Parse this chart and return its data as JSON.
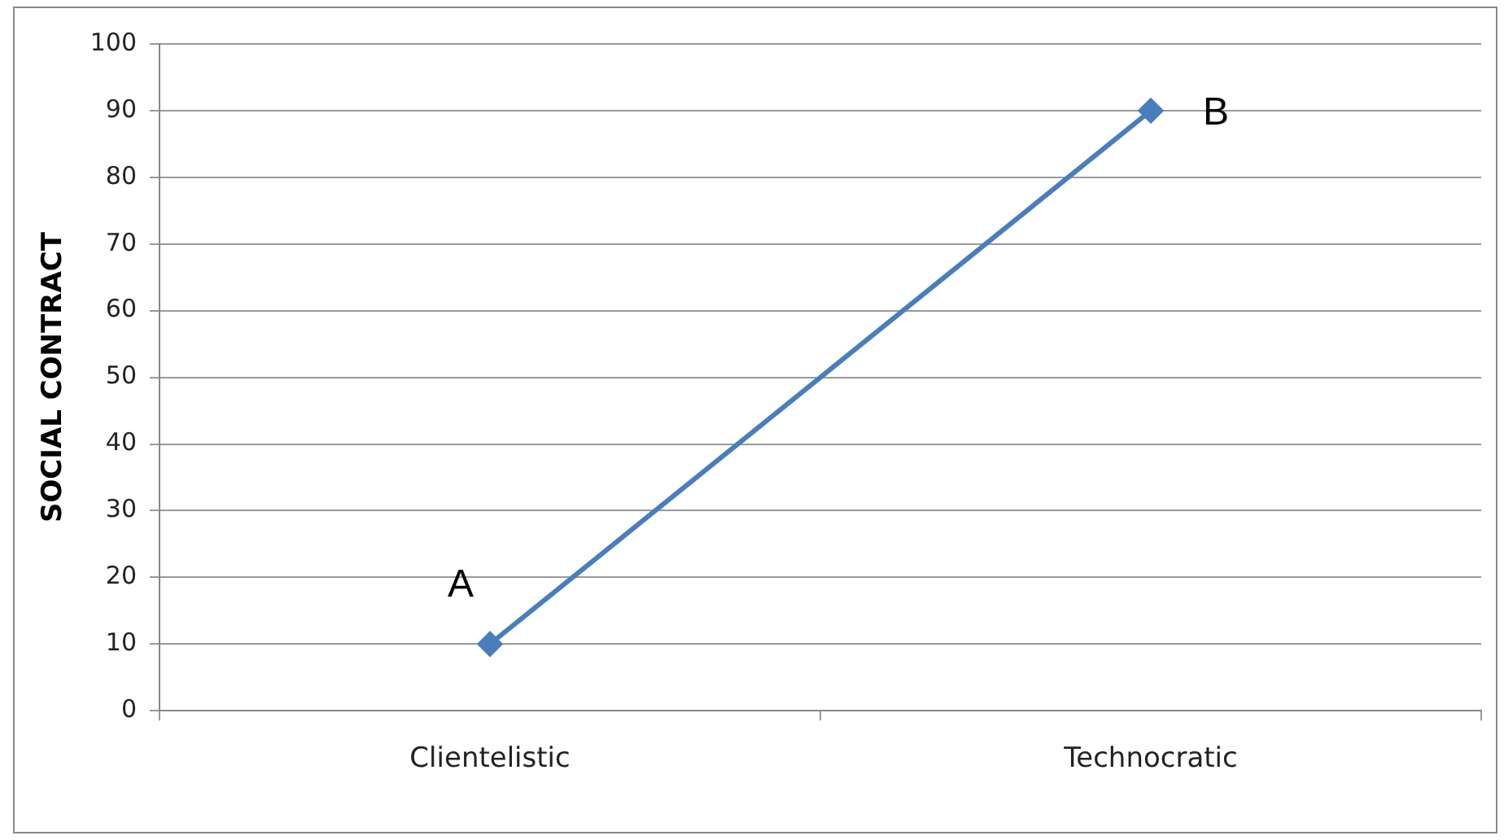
{
  "chart_data": {
    "type": "line",
    "ylabel": "SOCIAL CONTRACT",
    "categories": [
      "Clientelistic",
      "Technocratic"
    ],
    "series": [
      {
        "color": "#4a7ebb",
        "values": [
          10,
          90
        ]
      }
    ],
    "ylim": [
      0,
      100
    ],
    "yticks": [
      0,
      10,
      20,
      30,
      40,
      50,
      60,
      70,
      80,
      90,
      100
    ],
    "grid": "y",
    "legend": false,
    "marker": "diamond",
    "line_style": "solid",
    "annotations": [
      {
        "text": "A",
        "x": "Clientelistic",
        "y": 10
      },
      {
        "text": "B",
        "x": "Technocratic",
        "y": 90
      }
    ]
  }
}
